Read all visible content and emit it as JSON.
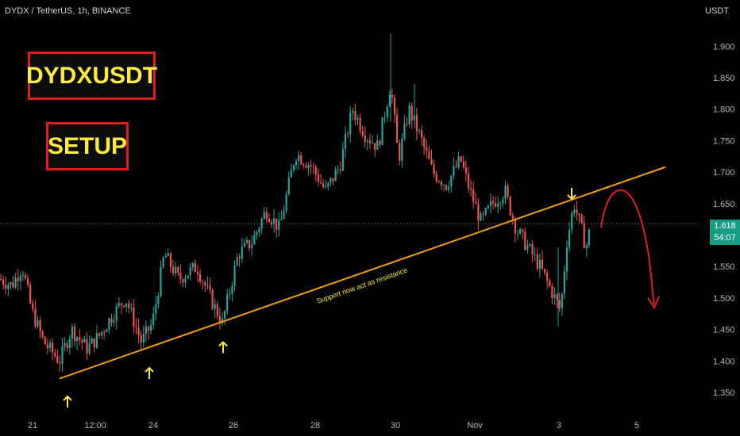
{
  "header": {
    "symbol": "DYDX / TetherUS, 1h, BINANCE",
    "currency": "USDT"
  },
  "annotations": {
    "title": "DYDXUSDT",
    "subtitle": "SETUP",
    "trendline_label": "Support now act as resistance"
  },
  "price_tag": {
    "price": "1.618",
    "countdown": "54:07"
  },
  "colors": {
    "up": "#26a69a",
    "down": "#ef5350",
    "trendline": "#f39c12",
    "arrow_yellow": "#ffeb3b",
    "arrow_red": "#e01e1e",
    "tag": "#1a9c84"
  },
  "chart_data": {
    "type": "candlestick",
    "ylim": [
      1.335,
      1.96
    ],
    "y_ticks": [
      "1.350",
      "1.400",
      "1.450",
      "1.500",
      "1.550",
      "1.600",
      "1.650",
      "1.700",
      "1.750",
      "1.800",
      "1.850",
      "1.900"
    ],
    "x_ticks": [
      "21",
      "12:00",
      "24",
      "26",
      "28",
      "30",
      "Nov",
      "3",
      "5"
    ],
    "current_price": 1.618,
    "price_path": [
      [
        0,
        1.53
      ],
      [
        15,
        1.52
      ],
      [
        28,
        1.55
      ],
      [
        40,
        1.48
      ],
      [
        55,
        1.43
      ],
      [
        75,
        1.4
      ],
      [
        90,
        1.45
      ],
      [
        110,
        1.42
      ],
      [
        125,
        1.44
      ],
      [
        140,
        1.47
      ],
      [
        158,
        1.5
      ],
      [
        178,
        1.43
      ],
      [
        192,
        1.46
      ],
      [
        207,
        1.57
      ],
      [
        225,
        1.53
      ],
      [
        248,
        1.55
      ],
      [
        265,
        1.5
      ],
      [
        280,
        1.46
      ],
      [
        300,
        1.57
      ],
      [
        318,
        1.59
      ],
      [
        335,
        1.64
      ],
      [
        352,
        1.61
      ],
      [
        372,
        1.73
      ],
      [
        392,
        1.71
      ],
      [
        410,
        1.67
      ],
      [
        428,
        1.71
      ],
      [
        444,
        1.8
      ],
      [
        460,
        1.76
      ],
      [
        476,
        1.74
      ],
      [
        492,
        1.84
      ],
      [
        502,
        1.72
      ],
      [
        515,
        1.8
      ],
      [
        528,
        1.76
      ],
      [
        545,
        1.7
      ],
      [
        562,
        1.68
      ],
      [
        580,
        1.72
      ],
      [
        592,
        1.67
      ],
      [
        606,
        1.62
      ],
      [
        620,
        1.65
      ],
      [
        636,
        1.67
      ],
      [
        650,
        1.61
      ],
      [
        665,
        1.58
      ],
      [
        680,
        1.55
      ],
      [
        695,
        1.51
      ],
      [
        706,
        1.48
      ],
      [
        714,
        1.59
      ],
      [
        723,
        1.65
      ],
      [
        732,
        1.61
      ],
      [
        738,
        1.58
      ],
      [
        745,
        1.62
      ]
    ],
    "trendline": {
      "from": [
        75,
        1.372
      ],
      "to": [
        838,
        1.708
      ]
    },
    "touch_arrows_x": [
      85,
      188,
      281
    ],
    "down_arrow_x": 720
  }
}
